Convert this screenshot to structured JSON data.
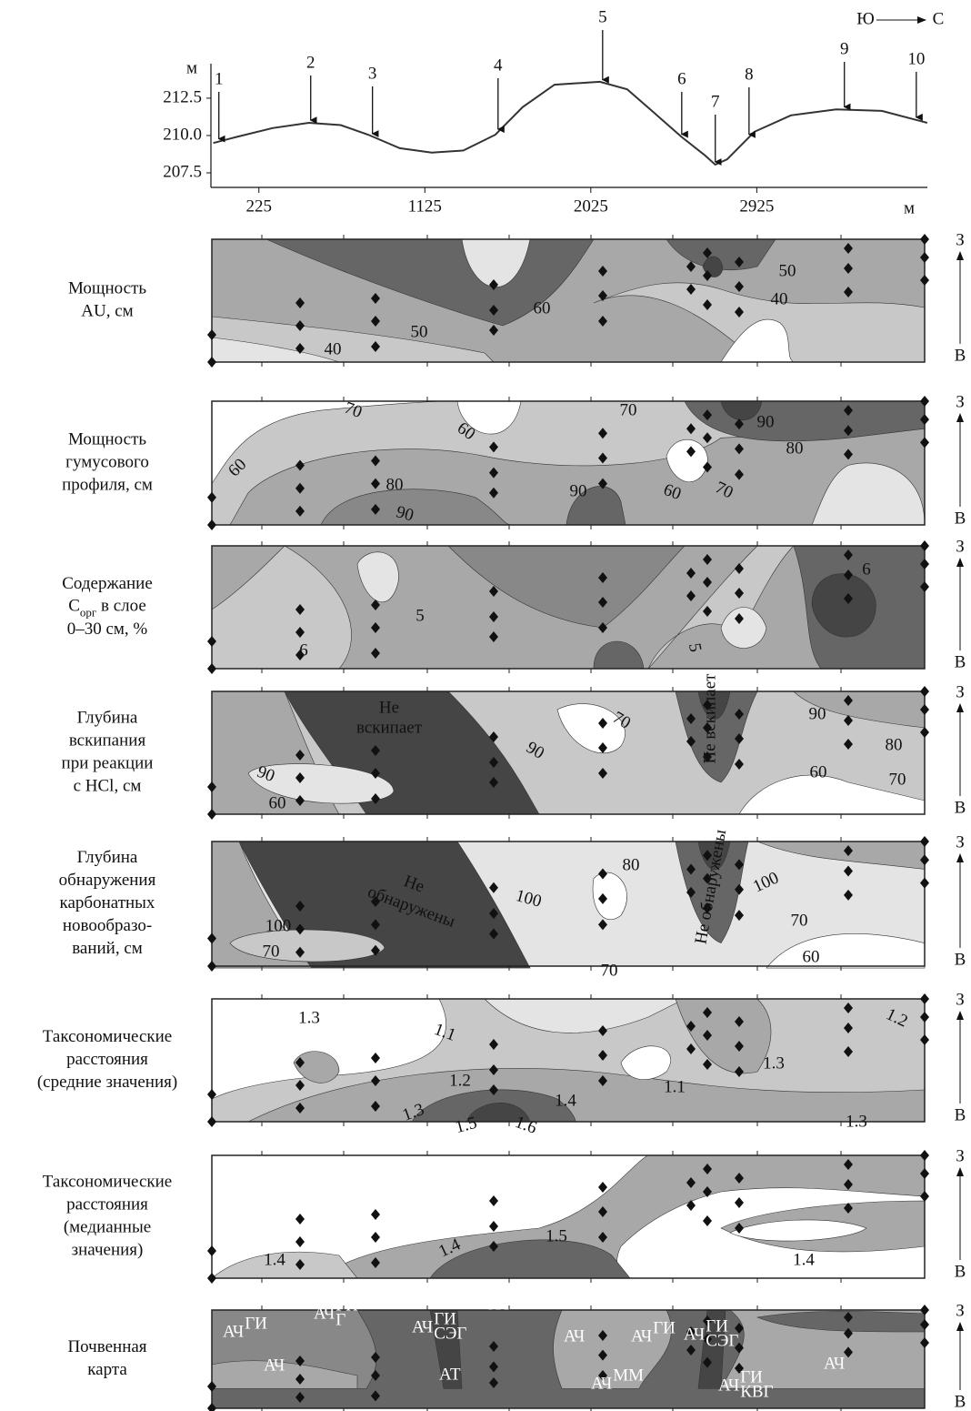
{
  "chart_data": {
    "type": "line",
    "ylabel": "м",
    "xlabel": "м",
    "direction": {
      "from": "Ю",
      "to": "С"
    },
    "x": [
      -22,
      102,
      299,
      496,
      669,
      817,
      989,
      1162,
      1334,
      1507,
      1655,
      1828,
      2074,
      2222,
      2370,
      2518,
      2641,
      2700,
      2764,
      2912,
      3110,
      3356,
      3603,
      3849
    ],
    "values": [
      209.5,
      209.9,
      210.5,
      210.85,
      210.7,
      210.06,
      209.15,
      208.85,
      209.0,
      210.05,
      211.9,
      213.4,
      213.6,
      213.1,
      211.5,
      209.9,
      208.7,
      208.05,
      208.4,
      210.25,
      211.35,
      211.75,
      211.65,
      210.85
    ],
    "color": "#333333",
    "xlim": [
      -35,
      3850
    ],
    "ylim": [
      206.8,
      214.2
    ],
    "xticks": [
      225,
      1125,
      2025,
      2925
    ],
    "yticks": [
      207.5,
      {
        "value": 210,
        "label": "210.0"
      },
      212.5
    ],
    "annotations": [
      {
        "label": "1",
        "x": 8
      },
      {
        "label": "2",
        "x": 506
      },
      {
        "label": "3",
        "x": 841
      },
      {
        "label": "4",
        "x": 1522
      },
      {
        "label": "5",
        "x": 2089
      },
      {
        "label": "6",
        "x": 2518
      },
      {
        "label": "7",
        "x": 2700
      },
      {
        "label": "8",
        "x": 2883
      },
      {
        "label": "9",
        "x": 3400
      },
      {
        "label": "10",
        "x": 3790
      }
    ]
  },
  "side_labels": {
    "top": "З",
    "bottom": "В"
  },
  "panels": [
    {
      "label": [
        "Мощность",
        "AU, см"
      ],
      "contour_labels": [
        "60",
        "50",
        "40",
        "50",
        "40"
      ]
    },
    {
      "label": [
        "Мощность",
        "гумусового",
        "профиля, см"
      ],
      "contour_labels": [
        "70",
        "60",
        "60",
        "80",
        "90",
        "90",
        "70",
        "60",
        "70",
        "90",
        "80"
      ]
    },
    {
      "label": [
        "Содержание",
        {
          "text": "C",
          "sub": "орг",
          "rest": " в слое"
        },
        "0–30 см, %"
      ],
      "contour_labels": [
        "5",
        "6",
        "5",
        "6"
      ]
    },
    {
      "label": [
        "Глубина",
        "вскипания",
        "при реакции",
        "с HCl, см"
      ],
      "contour_labels": [
        "Не",
        "вскипает",
        "90",
        "90",
        "60",
        "70",
        "Не вскипает",
        "90",
        "80",
        "60",
        "70"
      ]
    },
    {
      "label": [
        "Глубина",
        "обнаружения",
        "карбонатных",
        "новообразо-",
        "ваний, см"
      ],
      "contour_labels": [
        "Не",
        "обнаружены",
        "100",
        "100",
        "70",
        "80",
        "Не обнаружены",
        "100",
        "70",
        "60",
        "70"
      ]
    },
    {
      "label": [
        "Таксономические",
        "расстояния",
        "(средние значения)"
      ],
      "contour_labels": [
        "1.3",
        "1.1",
        "1.2",
        "1.4",
        "1.3",
        "1.5",
        "1.6",
        "1.1",
        "1.3",
        "1.3",
        "1.2"
      ]
    },
    {
      "label": [
        "Таксономические",
        "расстояния",
        "(медианные",
        "значения)"
      ],
      "contour_labels": [
        "1.5",
        "1.4",
        "1.4",
        "1.4"
      ]
    },
    {
      "label": [
        "Почвенная",
        "карта"
      ],
      "soil_labels": [
        {
          "base": "АЧ",
          "sup": "ГИ"
        },
        {
          "base": "АЧ"
        },
        {
          "base": "АЧ",
          "sup": "ГИ",
          "sub": "Г"
        },
        {
          "base": "АЧ",
          "sup": "ГИ",
          "sub": "СЭГ"
        },
        {
          "base": "АЧ",
          "sup": "ГИ"
        },
        {
          "base": "АТ"
        },
        {
          "base": "АЧ"
        },
        {
          "base": "АЧ",
          "sup": "ГИ"
        },
        {
          "base": "АЧ",
          "sup": "ГИ",
          "sub": "СЭГ"
        },
        {
          "base": "АЧ",
          "sup": "ММ"
        },
        {
          "base": "АЧ",
          "sup": "ГИ",
          "sub": "КВГ"
        },
        {
          "base": "АЧ"
        },
        {
          "base": "АЧ",
          "sup": "ГИ"
        },
        {
          "base": "АЧ"
        }
      ]
    }
  ]
}
